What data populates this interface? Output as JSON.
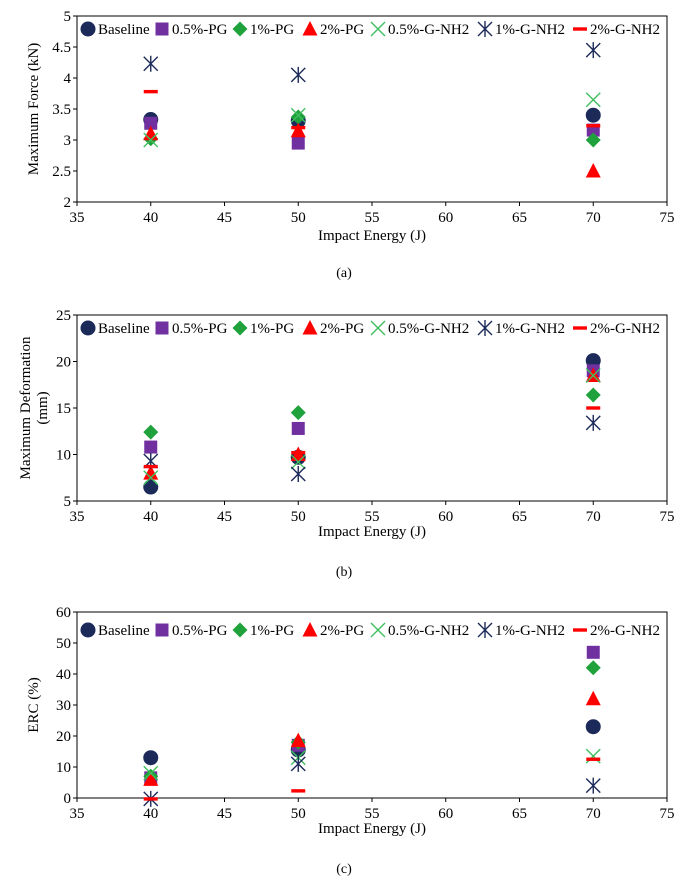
{
  "series_styles": [
    {
      "name": "Baseline",
      "marker": "circle",
      "color": "#1c2a5a"
    },
    {
      "name": "0.5%-PG",
      "marker": "square",
      "color": "#7030a0"
    },
    {
      "name": "1%-PG",
      "marker": "diamond",
      "color": "#1fa23c"
    },
    {
      "name": "2%-PG",
      "marker": "triangle",
      "color": "#ff0000"
    },
    {
      "name": "0.5%-G-NH2",
      "marker": "x",
      "color": "#3fbf5f"
    },
    {
      "name": "1%-G-NH2",
      "marker": "star",
      "color": "#1c2a5a"
    },
    {
      "name": "2%-G-NH2",
      "marker": "dash",
      "color": "#ff0000"
    }
  ],
  "chart_data": [
    {
      "type": "scatter",
      "caption": "(a)",
      "title": "",
      "xlabel": "Impact Energy (J)",
      "ylabel": "Maximum Force (kN)",
      "ylabel_lines": [
        "Maximum Force (kN)"
      ],
      "xlim": [
        35,
        75
      ],
      "ylim": [
        2,
        5
      ],
      "xticks": [
        35,
        40,
        45,
        50,
        55,
        60,
        65,
        70,
        75
      ],
      "yticks": [
        2,
        2.5,
        3,
        3.5,
        4,
        4.5,
        5
      ],
      "ytick_labels": [
        "2",
        "2.5",
        "3",
        "3.5",
        "4",
        "4.5",
        "5"
      ],
      "legend": "top",
      "x": [
        40,
        50,
        70
      ],
      "series": [
        {
          "name": "Baseline",
          "values": [
            3.33,
            3.31,
            3.4
          ]
        },
        {
          "name": "0.5%-PG",
          "values": [
            3.27,
            2.95,
            3.16
          ]
        },
        {
          "name": "1%-PG",
          "values": [
            3.02,
            3.37,
            3.0
          ]
        },
        {
          "name": "2%-PG",
          "values": [
            3.1,
            3.15,
            2.5
          ]
        },
        {
          "name": "0.5%-G-NH2",
          "values": [
            3.0,
            3.4,
            3.65
          ]
        },
        {
          "name": "1%-G-NH2",
          "values": [
            4.23,
            4.05,
            4.45
          ]
        },
        {
          "name": "2%-G-NH2",
          "values": [
            3.78,
            3.2,
            3.23
          ]
        }
      ]
    },
    {
      "type": "scatter",
      "caption": "(b)",
      "title": "",
      "xlabel": "Impact Energy (J)",
      "ylabel": "Maximum Deformation (mm)",
      "ylabel_lines": [
        "Maximum Deformation",
        "(mm)"
      ],
      "xlim": [
        35,
        75
      ],
      "ylim": [
        5,
        25
      ],
      "xticks": [
        35,
        40,
        45,
        50,
        55,
        60,
        65,
        70,
        75
      ],
      "yticks": [
        5,
        10,
        15,
        20,
        25
      ],
      "ytick_labels": [
        "5",
        "10",
        "15",
        "20",
        "25"
      ],
      "legend": "top",
      "x": [
        40,
        50,
        70
      ],
      "series": [
        {
          "name": "Baseline",
          "values": [
            6.5,
            9.7,
            20.1
          ]
        },
        {
          "name": "0.5%-PG",
          "values": [
            10.8,
            12.8,
            19.0
          ]
        },
        {
          "name": "1%-PG",
          "values": [
            12.4,
            14.5,
            16.4
          ]
        },
        {
          "name": "2%-PG",
          "values": [
            8.0,
            10.0,
            18.5
          ]
        },
        {
          "name": "0.5%-G-NH2",
          "values": [
            7.5,
            9.2,
            18.5
          ]
        },
        {
          "name": "1%-G-NH2",
          "values": [
            9.3,
            7.9,
            13.4
          ]
        },
        {
          "name": "2%-G-NH2",
          "values": [
            8.7,
            10.2,
            15.0
          ]
        }
      ]
    },
    {
      "type": "scatter",
      "caption": "(c)",
      "title": "",
      "xlabel": "Impact Energy (J)",
      "ylabel": "ERC (%)",
      "ylabel_lines": [
        "ERC (%)"
      ],
      "xlim": [
        35,
        75
      ],
      "ylim": [
        0,
        60
      ],
      "xticks": [
        35,
        40,
        45,
        50,
        55,
        60,
        65,
        70,
        75
      ],
      "yticks": [
        0,
        10,
        20,
        30,
        40,
        50,
        60
      ],
      "ytick_labels": [
        "0",
        "10",
        "20",
        "30",
        "40",
        "50",
        "60"
      ],
      "legend": "top",
      "x": [
        40,
        50,
        70
      ],
      "series": [
        {
          "name": "Baseline",
          "values": [
            13.0,
            15.5,
            23.0
          ]
        },
        {
          "name": "0.5%-PG",
          "values": [
            6.5,
            17.0,
            47.0
          ]
        },
        {
          "name": "1%-PG",
          "values": [
            7.0,
            18.0,
            42.0
          ]
        },
        {
          "name": "2%-PG",
          "values": [
            6.0,
            18.5,
            32.0
          ]
        },
        {
          "name": "0.5%-G-NH2",
          "values": [
            8.0,
            13.0,
            13.5
          ]
        },
        {
          "name": "1%-G-NH2",
          "values": [
            -0.3,
            11.0,
            4.0
          ]
        },
        {
          "name": "2%-G-NH2",
          "values": [
            -0.3,
            2.3,
            12.5
          ]
        }
      ]
    }
  ]
}
